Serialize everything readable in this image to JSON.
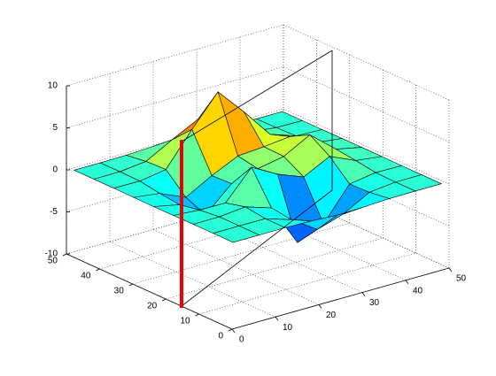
{
  "chart_data": {
    "type": "surface",
    "x": [
      1,
      7,
      13,
      19,
      25,
      31,
      37,
      43,
      49
    ],
    "y": [
      1,
      7,
      13,
      19,
      25,
      31,
      37,
      43,
      49
    ],
    "z": [
      [
        0,
        0,
        0,
        -0.08,
        -0.25,
        -0.17,
        -0.03,
        0,
        0
      ],
      [
        0,
        0.01,
        0,
        -0.99,
        -3.02,
        -2.05,
        -0.35,
        -0.01,
        0
      ],
      [
        0,
        0.02,
        0.33,
        -0.67,
        -5.65,
        -4.31,
        -0.44,
        0.05,
        0
      ],
      [
        -0.02,
        -0.25,
        -0.28,
        3.09,
        1.4,
        0.2,
        1.77,
        0.41,
        0.02
      ],
      [
        -0.04,
        -0.69,
        -2.76,
        0.07,
        0.98,
        1.57,
        3.26,
        0.7,
        0.03
      ],
      [
        -0.02,
        -0.42,
        -1.76,
        -0.05,
        1.42,
        1.65,
        1.99,
        0.4,
        0.02
      ],
      [
        0,
        -0.03,
        0.48,
        4.37,
        7.97,
        4.72,
        1.18,
        0.12,
        0
      ],
      [
        0,
        0.02,
        0.37,
        2.07,
        3.65,
        2.09,
        0.41,
        0.03,
        0
      ],
      [
        0,
        0,
        0.03,
        0.17,
        0.3,
        0.17,
        0.03,
        0,
        0
      ]
    ],
    "xlim": [
      0,
      50
    ],
    "ylim": [
      0,
      50
    ],
    "zlim": [
      -10,
      10
    ],
    "xticks": [
      0,
      10,
      20,
      30,
      40,
      50
    ],
    "yticks": [
      0,
      10,
      20,
      30,
      40,
      50
    ],
    "zticks": [
      -10,
      -5,
      0,
      5,
      10
    ],
    "grid": true,
    "colormap": "jet",
    "edge_color": "#000000"
  }
}
